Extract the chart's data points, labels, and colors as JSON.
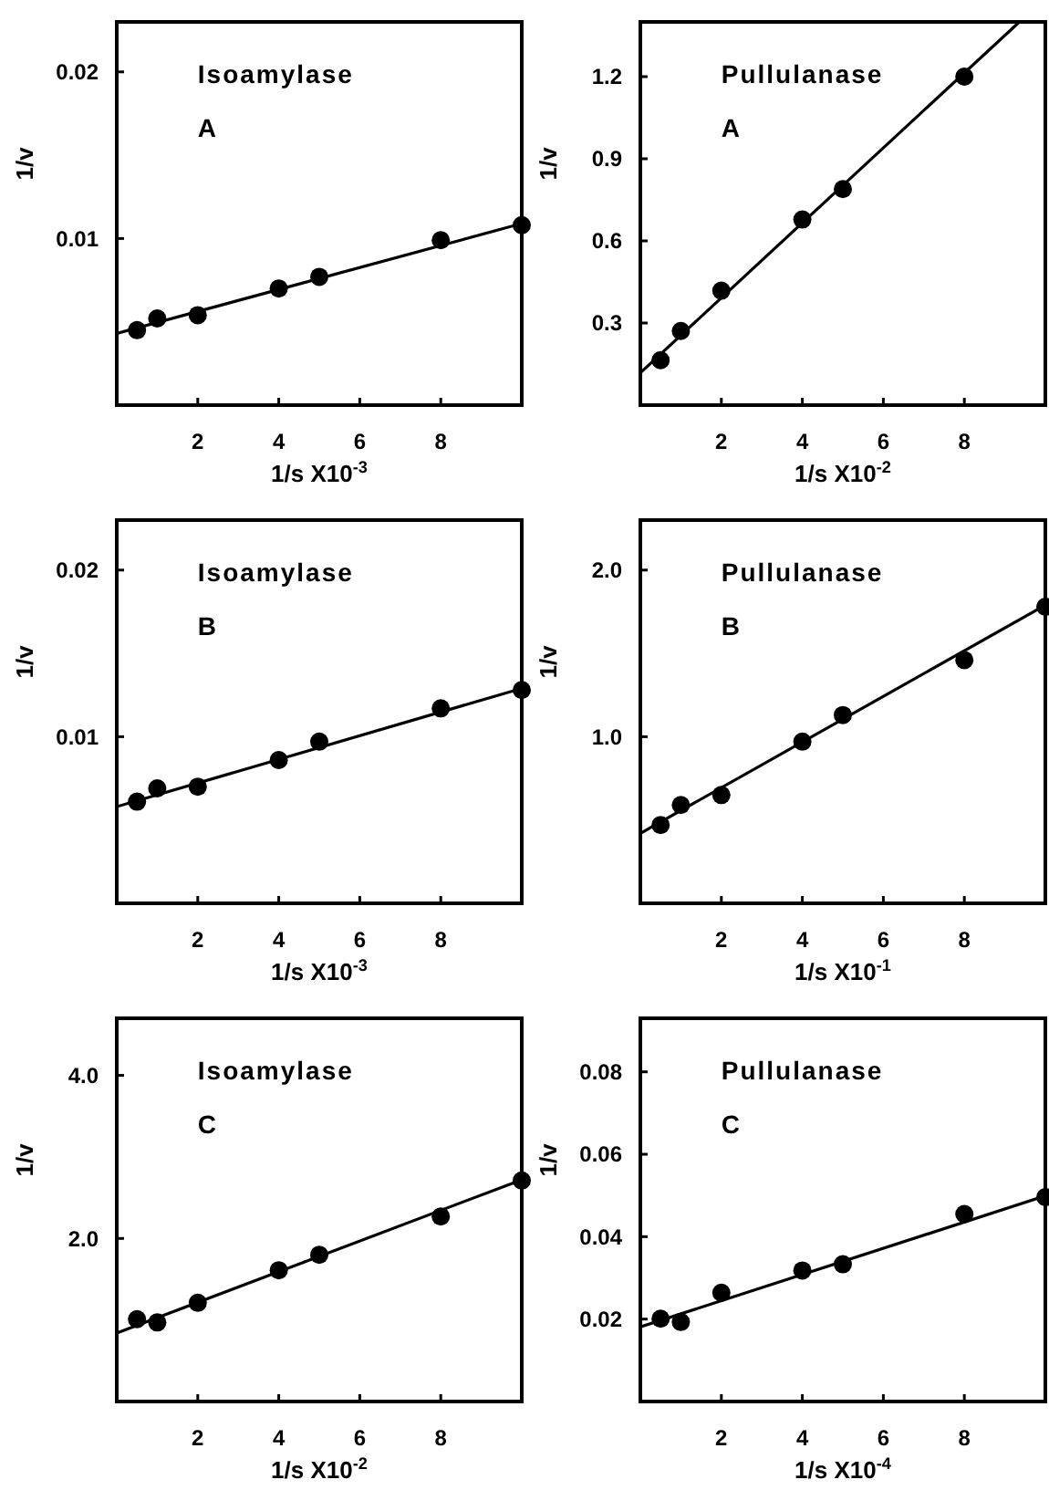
{
  "chart_data": [
    {
      "type": "scatter",
      "title": "Isoamylase",
      "subtitle": "A",
      "xlabel": "1/s X10$^{-3}$",
      "ylabel": "1/v",
      "xlim": [
        0,
        10
      ],
      "xticks": [
        2,
        4,
        6,
        8
      ],
      "ylim": [
        0,
        0.023
      ],
      "yticks": [
        0.01,
        0.02
      ],
      "grid": false,
      "x": [
        0.5,
        1,
        2,
        4,
        5,
        8,
        10
      ],
      "series": [
        {
          "type": "scatter",
          "color": "#000000",
          "marker": "circle",
          "values": [
            0.0045,
            0.0052,
            0.0054,
            0.007,
            0.0077,
            0.0099,
            0.0108
          ]
        },
        {
          "type": "line",
          "color": "#000000",
          "marker": "none",
          "line_style": "solid",
          "x": [
            0,
            10
          ],
          "values": [
            0.0043,
            0.0109
          ]
        }
      ]
    },
    {
      "type": "scatter",
      "title": "Pullulanase",
      "subtitle": "A",
      "xlabel": "1/s X10$^{-2}$",
      "ylabel": "1/v",
      "xlim": [
        0,
        10
      ],
      "xticks": [
        2,
        4,
        6,
        8
      ],
      "ylim": [
        0,
        1.4
      ],
      "yticks": [
        0.3,
        0.6,
        0.9,
        1.2
      ],
      "grid": false,
      "x": [
        0.5,
        1,
        2,
        4,
        5,
        8
      ],
      "series": [
        {
          "type": "scatter",
          "color": "#000000",
          "marker": "circle",
          "values": [
            0.164,
            0.271,
            0.418,
            0.678,
            0.789,
            1.2
          ]
        },
        {
          "type": "line",
          "color": "#000000",
          "marker": "none",
          "line_style": "solid",
          "x": [
            0,
            9.36
          ],
          "values": [
            0.118,
            1.4
          ]
        }
      ]
    },
    {
      "type": "scatter",
      "title": "Isoamylase",
      "subtitle": "B",
      "xlabel": "1/s X10$^{-3}$",
      "ylabel": "1/v",
      "xlim": [
        0,
        10
      ],
      "xticks": [
        2,
        4,
        6,
        8
      ],
      "ylim": [
        0,
        0.023
      ],
      "yticks": [
        0.01,
        0.02
      ],
      "grid": false,
      "x": [
        0.5,
        1,
        2,
        4,
        5,
        8,
        10
      ],
      "series": [
        {
          "type": "scatter",
          "color": "#000000",
          "marker": "circle",
          "values": [
            0.0061,
            0.0069,
            0.007,
            0.0086,
            0.0097,
            0.0117,
            0.0128
          ]
        },
        {
          "type": "line",
          "color": "#000000",
          "marker": "none",
          "line_style": "solid",
          "x": [
            0,
            10
          ],
          "values": [
            0.0058,
            0.0129
          ]
        }
      ]
    },
    {
      "type": "scatter",
      "title": "Pullulanase",
      "subtitle": "B",
      "xlabel": "1/s X10$^{-1}$",
      "ylabel": "1/v",
      "xlim": [
        0,
        10
      ],
      "xticks": [
        2,
        4,
        6,
        8
      ],
      "ylim": [
        0,
        2.3
      ],
      "yticks": [
        {
          "value": 1,
          "label": "1.0"
        },
        {
          "value": 2,
          "label": "2.0"
        }
      ],
      "grid": false,
      "x": [
        0.5,
        1,
        2,
        4,
        5,
        8,
        10
      ],
      "series": [
        {
          "type": "scatter",
          "color": "#000000",
          "marker": "circle",
          "values": [
            0.47,
            0.59,
            0.65,
            0.97,
            1.13,
            1.46,
            1.78
          ]
        },
        {
          "type": "line",
          "color": "#000000",
          "marker": "none",
          "line_style": "solid",
          "x": [
            0,
            10
          ],
          "values": [
            0.42,
            1.79
          ]
        }
      ]
    },
    {
      "type": "scatter",
      "title": "Isoamylase",
      "subtitle": "C",
      "xlabel": "1/s X10$^{-2}$",
      "ylabel": "1/v",
      "xlim": [
        0,
        10
      ],
      "xticks": [
        2,
        4,
        6,
        8
      ],
      "ylim": [
        0,
        4.7
      ],
      "yticks": [
        {
          "value": 2,
          "label": "2.0"
        },
        {
          "value": 4,
          "label": "4.0"
        }
      ],
      "grid": false,
      "x": [
        0.5,
        1,
        2,
        4,
        5,
        8,
        10
      ],
      "series": [
        {
          "type": "scatter",
          "color": "#000000",
          "marker": "circle",
          "values": [
            1.01,
            0.97,
            1.21,
            1.61,
            1.8,
            2.27,
            2.71
          ]
        },
        {
          "type": "line",
          "color": "#000000",
          "marker": "none",
          "line_style": "solid",
          "x": [
            0,
            10
          ],
          "values": [
            0.84,
            2.72
          ]
        }
      ]
    },
    {
      "type": "scatter",
      "title": "Pullulanase",
      "subtitle": "C",
      "xlabel": "1/s X10$^{-4}$",
      "ylabel": "1/v",
      "xlim": [
        0,
        10
      ],
      "xticks": [
        2,
        4,
        6,
        8
      ],
      "ylim": [
        0,
        0.093
      ],
      "yticks": [
        0.02,
        0.04,
        0.06,
        0.08
      ],
      "grid": false,
      "x": [
        0.5,
        1,
        2,
        4,
        5,
        8,
        10
      ],
      "series": [
        {
          "type": "scatter",
          "color": "#000000",
          "marker": "circle",
          "values": [
            0.0201,
            0.0193,
            0.0264,
            0.0318,
            0.0333,
            0.0455,
            0.0496
          ]
        },
        {
          "type": "line",
          "color": "#000000",
          "marker": "none",
          "line_style": "solid",
          "x": [
            0,
            10
          ],
          "values": [
            0.0181,
            0.0499
          ]
        }
      ]
    }
  ]
}
